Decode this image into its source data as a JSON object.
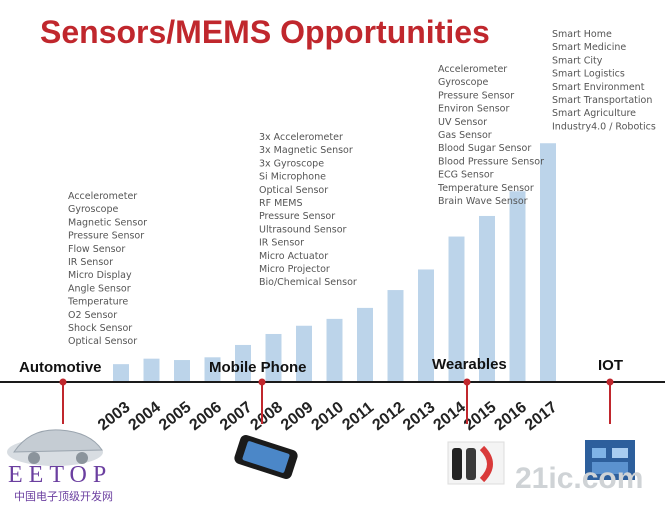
{
  "title": "Sensors/MEMS Opportunities",
  "colors": {
    "bar": "#bcd4ea",
    "title": "#c0272d",
    "marker": "#c0272d"
  },
  "chart_data": {
    "type": "bar",
    "title": "Sensors/MEMS Opportunities",
    "xlabel": "",
    "ylabel": "",
    "categories": [
      "2003",
      "2004",
      "2005",
      "2006",
      "2007",
      "2008",
      "2009",
      "2010",
      "2011",
      "2012",
      "2013",
      "2014",
      "2015",
      "2016",
      "2017"
    ],
    "values": [
      13,
      17,
      16,
      18,
      27,
      35,
      41,
      46,
      54,
      67,
      82,
      106,
      121,
      139,
      174
    ],
    "ylim": [
      0,
      180
    ],
    "grid": false,
    "legend": "none"
  },
  "segments": [
    {
      "label": "Automotive",
      "year": "2003",
      "sensors": [
        "Accelerometer",
        "Gyroscope",
        "Magnetic Sensor",
        "Pressure Sensor",
        "Flow Sensor",
        "IR Sensor",
        "Micro Display",
        "Angle Sensor",
        "Temperature",
        "O2 Sensor",
        "Shock Sensor",
        "Optical Sensor"
      ]
    },
    {
      "label": "Mobile Phone",
      "year": "2007",
      "sensors": [
        "3x Accelerometer",
        "3x Magnetic Sensor",
        "3x Gyroscope",
        "Si Microphone",
        "Optical Sensor",
        "RF MEMS",
        "Pressure Sensor",
        "Ultrasound Sensor",
        "IR Sensor",
        "Micro Actuator",
        "Micro Projector",
        "Bio/Chemical Sensor"
      ]
    },
    {
      "label": "Wearables",
      "year": "2013",
      "sensors": [
        "Accelerometer",
        "Gyroscope",
        "Pressure Sensor",
        "Environ Sensor",
        "UV Sensor",
        "Gas Sensor",
        "Blood Sugar Sensor",
        "Blood Pressure Sensor",
        "ECG Sensor",
        "Temperature Sensor",
        "Brain Wave Sensor"
      ]
    },
    {
      "label": "IOT",
      "year": "2017",
      "sensors": [
        "Smart Home",
        "Smart Medicine",
        "Smart City",
        "Smart Logistics",
        "Smart Environment",
        "Smart Transportation",
        "Smart Agriculture",
        "Industry4.0 / Robotics"
      ]
    }
  ],
  "watermarks": {
    "brand": "EETOP",
    "brand_sub": "中国电子顶级开发网",
    "right": "21ic.com"
  }
}
